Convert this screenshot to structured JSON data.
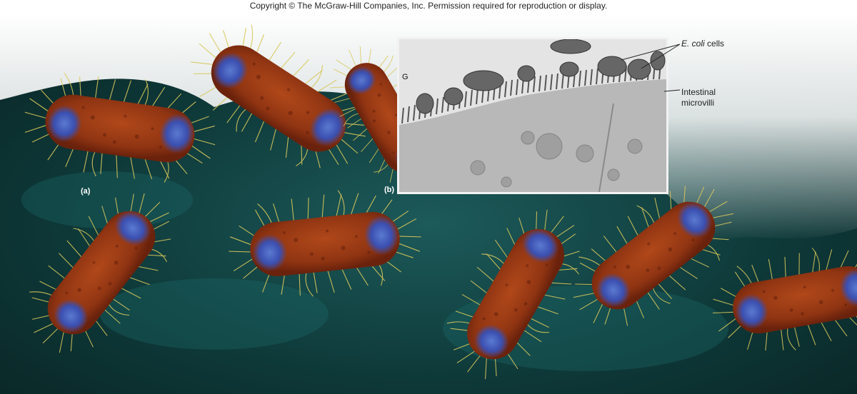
{
  "copyright": "Copyright © The McGraw-Hill Companies, Inc. Permission required for reproduction or display.",
  "panels": {
    "a_label": "(a)",
    "b_label": "(b)"
  },
  "inset": {
    "scale_mark": "G",
    "annotation_ecoli_italic": "E. coli",
    "annotation_ecoli_rest": " cells",
    "annotation_microvilli_line1": "Intestinal",
    "annotation_microvilli_line2": "microvilli"
  },
  "colors": {
    "background_teal": "#0f3a3a",
    "bacterium_body": "#9a3a14",
    "bacterium_nucleoid": "#3b4fb0",
    "pili": "#d8c85a",
    "micrograph_gray": "#bdbdbd"
  }
}
